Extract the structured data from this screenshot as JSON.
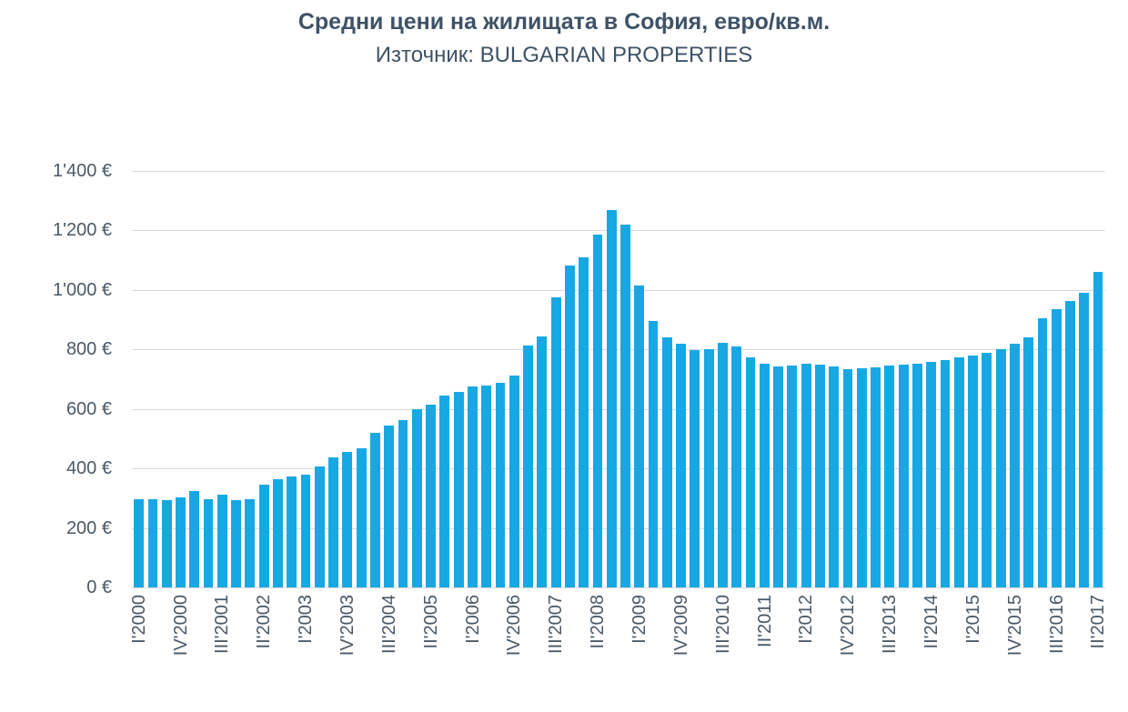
{
  "title": {
    "text": "Средни цени на жилищата в София, евро/кв.м.",
    "source": "Източник: BULGARIAN PROPERTIES"
  },
  "chart_data": {
    "type": "bar",
    "title": "Средни цени на жилищата в София, евро/кв.м.",
    "subtitle": "Източник: BULGARIAN PROPERTIES",
    "xlabel": "",
    "ylabel": "",
    "ylim": [
      0,
      1400
    ],
    "y_tick_interval": 200,
    "y_tick_labels": [
      "1'400 €",
      "1'200 €",
      "1'000 €",
      "800 €",
      "600 €",
      "400 €",
      "200 €",
      "0 €"
    ],
    "grid": true,
    "legend": false,
    "x_tick_every": 3,
    "x_tick_labels": [
      "I'2000",
      "IV'2000",
      "III'2001",
      "II'2002",
      "I'2003",
      "IV'2003",
      "III'2004",
      "II'2005",
      "I'2006",
      "IV'2006",
      "III'2007",
      "II'2008",
      "I'2009",
      "IV'2009",
      "III'2010",
      "II'2011",
      "I'2012",
      "IV'2012",
      "III'2013",
      "II'2014",
      "I'2015",
      "IV'2015",
      "III'2016",
      "II'2017"
    ],
    "categories": [
      "I'2000",
      "II'2000",
      "III'2000",
      "IV'2000",
      "I'2001",
      "II'2001",
      "III'2001",
      "IV'2001",
      "I'2002",
      "II'2002",
      "III'2002",
      "IV'2002",
      "I'2003",
      "II'2003",
      "III'2003",
      "IV'2003",
      "I'2004",
      "II'2004",
      "III'2004",
      "IV'2004",
      "I'2005",
      "II'2005",
      "III'2005",
      "IV'2005",
      "I'2006",
      "II'2006",
      "III'2006",
      "IV'2006",
      "I'2007",
      "II'2007",
      "III'2007",
      "IV'2007",
      "I'2008",
      "II'2008",
      "III'2008",
      "IV'2008",
      "I'2009",
      "II'2009",
      "III'2009",
      "IV'2009",
      "I'2010",
      "II'2010",
      "III'2010",
      "IV'2010",
      "I'2011",
      "II'2011",
      "III'2011",
      "IV'2011",
      "I'2012",
      "II'2012",
      "III'2012",
      "IV'2012",
      "I'2013",
      "II'2013",
      "III'2013",
      "IV'2013",
      "I'2014",
      "II'2014",
      "III'2014",
      "IV'2014",
      "I'2015",
      "II'2015",
      "III'2015",
      "IV'2015",
      "I'2016",
      "II'2016",
      "III'2016",
      "IV'2016",
      "I'2017",
      "II'2017"
    ],
    "values": [
      297,
      297,
      293,
      302,
      323,
      296,
      311,
      294,
      298,
      345,
      365,
      373,
      378,
      407,
      437,
      455,
      468,
      520,
      545,
      563,
      598,
      614,
      645,
      658,
      675,
      678,
      688,
      713,
      813,
      845,
      975,
      1083,
      1110,
      1185,
      1268,
      1220,
      1015,
      895,
      840,
      818,
      798,
      802,
      822,
      810,
      775,
      751,
      742,
      747,
      752,
      748,
      742,
      733,
      736,
      740,
      745,
      750,
      753,
      757,
      764,
      773,
      780,
      788,
      800,
      818,
      840,
      905,
      935,
      963,
      990,
      1060
    ],
    "bar_color": "#17A8E4",
    "gridline_color": "#D9D9D9",
    "title_color": "#3E5266",
    "tick_label_color": "#4A5866"
  }
}
